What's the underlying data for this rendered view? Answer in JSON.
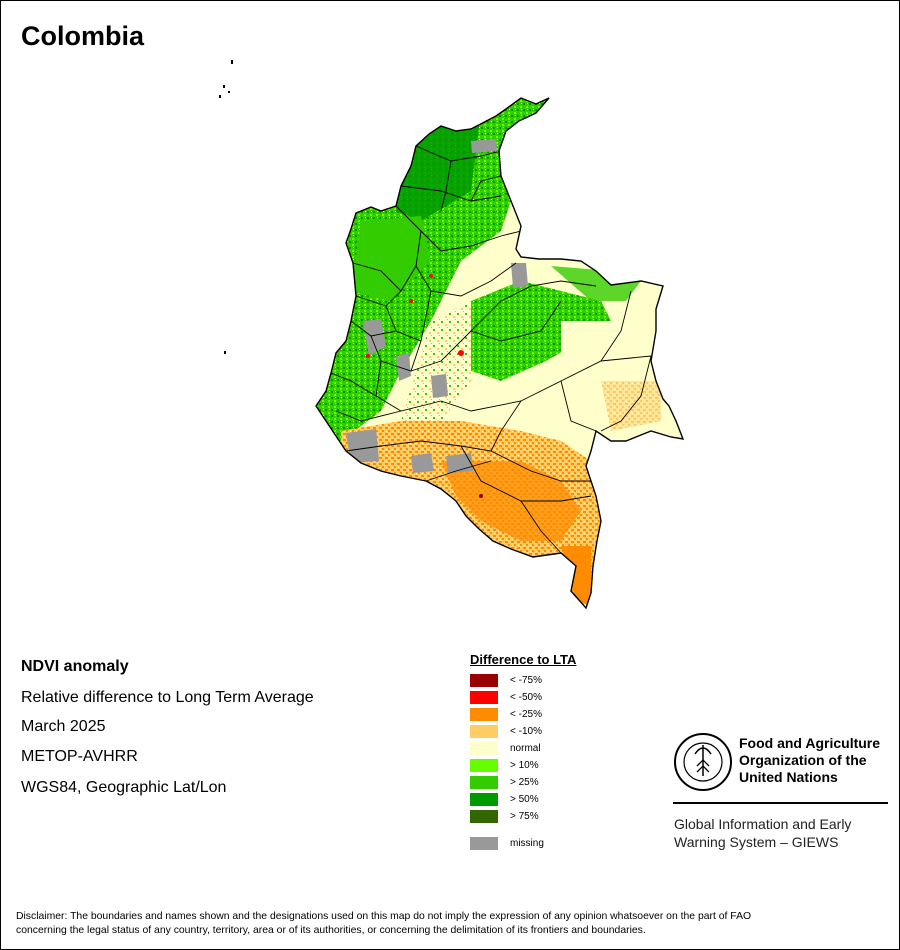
{
  "title": "Colombia",
  "info": {
    "heading": "NDVI anomaly",
    "line1": "Relative difference to Long Term Average",
    "line2": "March 2025",
    "line3": "METOP-AVHRR",
    "line4": "WGS84, Geographic Lat/Lon"
  },
  "legend": {
    "title": "Difference to LTA",
    "items": [
      {
        "label": "< -75%",
        "color": "#990000"
      },
      {
        "label": "< -50%",
        "color": "#ff0000"
      },
      {
        "label": "< -25%",
        "color": "#ff8c00"
      },
      {
        "label": "< -10%",
        "color": "#ffcc66"
      },
      {
        "label": "normal",
        "color": "#ffffcc"
      },
      {
        "label": "> 10%",
        "color": "#66ff00"
      },
      {
        "label": "> 25%",
        "color": "#33cc00"
      },
      {
        "label": "> 50%",
        "color": "#009900"
      },
      {
        "label": "> 75%",
        "color": "#336600"
      }
    ],
    "missing": {
      "label": "missing",
      "color": "#999999"
    }
  },
  "fao": {
    "name_line1": "Food and Agriculture",
    "name_line2": "Organization of the",
    "name_line3": "United Nations",
    "giews_line1": "Global Information and Early",
    "giews_line2": "Warning System – GIEWS",
    "logo_letters": "FAO",
    "motto": "FIAT PANIS"
  },
  "disclaimer": {
    "line1": "Disclaimer: The boundaries and names shown and the designations used on this map do not imply the expression of any opinion whatsoever on the part of FAO",
    "line2": "concerning the legal status of any country, territory, area or of its authorities, or concerning the delimitation of its frontiers and boundaries."
  },
  "colors": {
    "normal": "#ffffcc",
    "positive": "#33cc00",
    "strong_positive": "#009900",
    "negative": "#ff8c00",
    "mild_negative": "#ffcc66",
    "missing": "#999999"
  }
}
